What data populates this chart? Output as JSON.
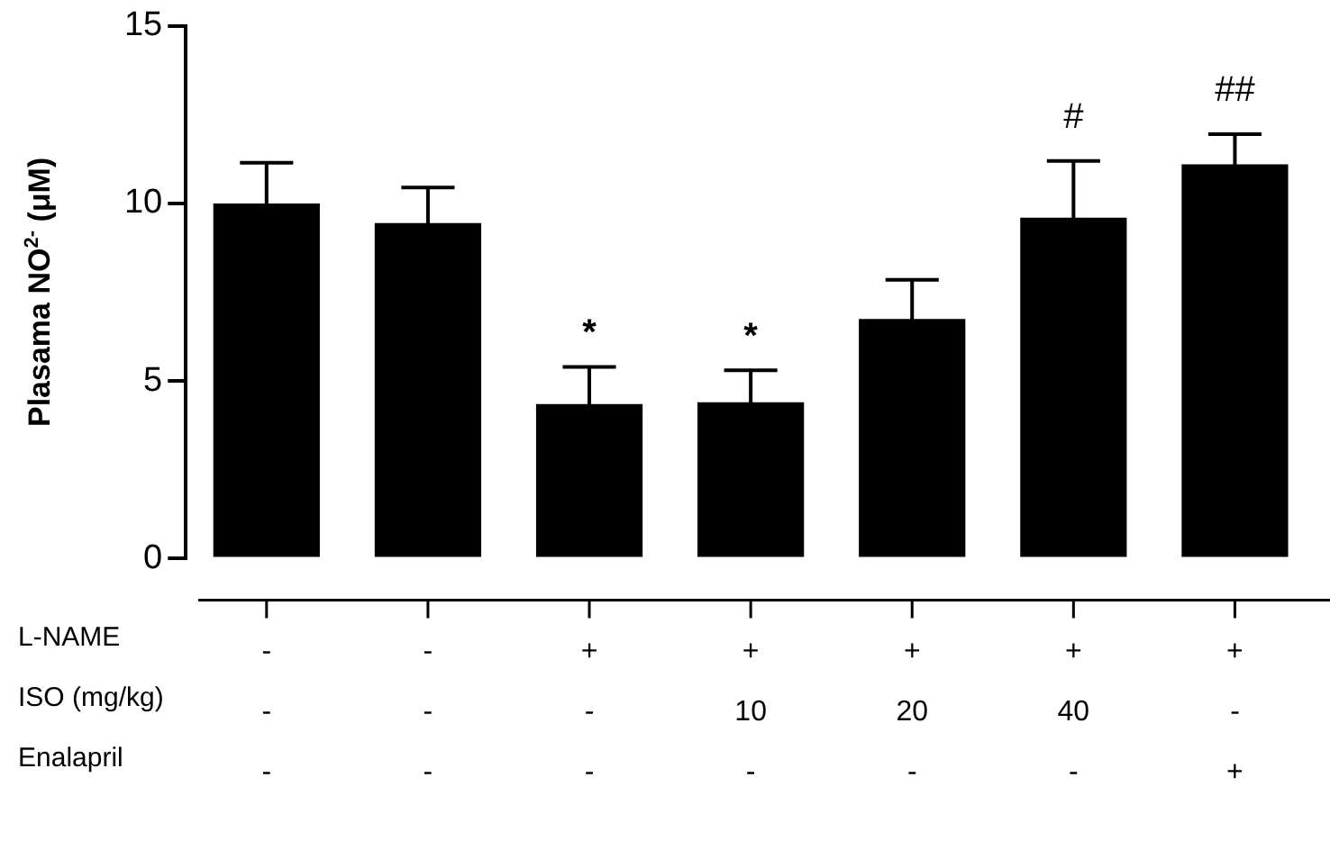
{
  "chart_data": {
    "type": "bar",
    "ylabel": "Plasama NO$^{2-}$ (μM)",
    "categories": [
      "-\n-\n-",
      "-\n-\n-",
      "+\n-\n-",
      "+\n10\n-",
      "+\n20\n-",
      "+\n40\n-",
      "+\n-\n+"
    ],
    "values": [
      10.0,
      9.45,
      4.35,
      4.4,
      6.75,
      9.6,
      11.1
    ],
    "errors": [
      1.15,
      1.0,
      1.05,
      0.9,
      1.1,
      1.6,
      0.85
    ],
    "color": "#000000",
    "ylim": [
      0,
      15
    ],
    "yticks": [
      0,
      5,
      10,
      15
    ],
    "grid": false,
    "legend": false,
    "annotations": [
      "*",
      "*",
      "#",
      "##",
      "L-NAME",
      "ISO (mg/kg)",
      "Enalapril"
    ]
  }
}
